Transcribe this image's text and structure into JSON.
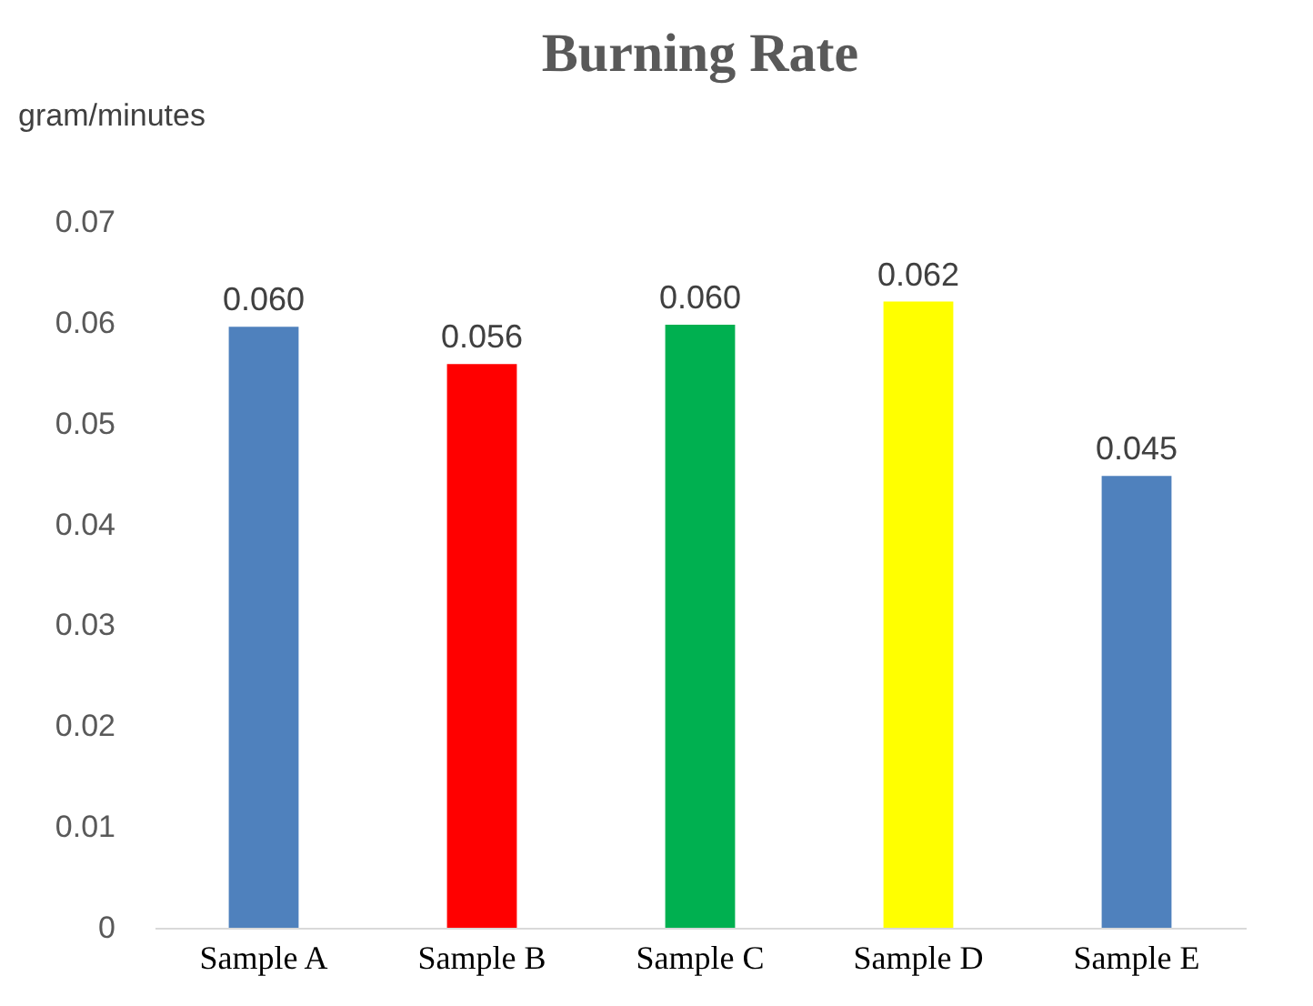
{
  "chart_data": {
    "type": "bar",
    "title": "Burning Rate",
    "ylabel": "gram/minutes",
    "categories": [
      "Sample A",
      "Sample B",
      "Sample C",
      "Sample D",
      "Sample E"
    ],
    "values": [
      0.0596,
      0.0559,
      0.0598,
      0.0621,
      0.0448
    ],
    "value_labels": [
      "0.060",
      "0.056",
      "0.060",
      "0.062",
      "0.045"
    ],
    "colors": [
      "#4f81bd",
      "#ff0000",
      "#00b050",
      "#ffff00",
      "#4f81bd"
    ],
    "ylim": [
      0,
      0.07
    ],
    "yticks": [
      0,
      0.01,
      0.02,
      0.03,
      0.04,
      0.05,
      0.06,
      0.07
    ],
    "grid": false,
    "legend": false
  }
}
